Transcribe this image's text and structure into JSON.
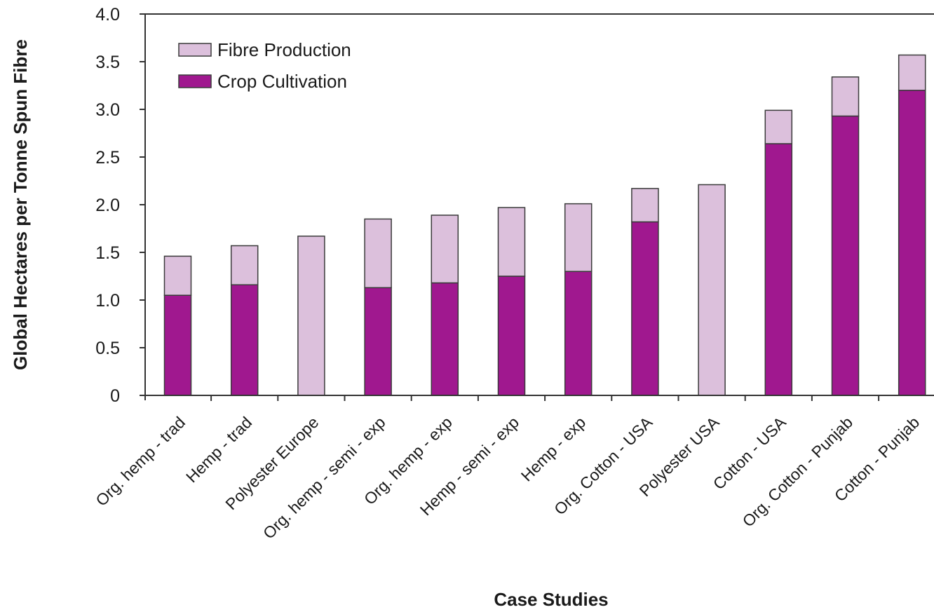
{
  "chart_data": {
    "type": "bar",
    "stacked": true,
    "xlabel": "Case Studies",
    "ylabel": "Global Hectares per Tonne Spun Fibre",
    "ylim": [
      0,
      4.0
    ],
    "yticks": [
      "0",
      "0.5",
      "1.0",
      "1.5",
      "2.0",
      "2.5",
      "3.0",
      "3.5",
      "4.0"
    ],
    "grid": false,
    "legend_position": "top-left",
    "categories": [
      "Org. hemp - trad",
      "Hemp - trad",
      "Polyester Europe",
      "Org. hemp - semi - exp",
      "Org. hemp - exp",
      "Hemp - semi - exp",
      "Hemp - exp",
      "Org. Cotton - USA",
      "Polyester USA",
      "Cotton - USA",
      "Org. Cotton - Punjab",
      "Cotton - Punjab"
    ],
    "series": [
      {
        "name": "Crop Cultivation",
        "color": "#a0188f",
        "values": [
          1.05,
          1.16,
          0,
          1.13,
          1.18,
          1.25,
          1.3,
          1.82,
          0,
          2.64,
          2.93,
          3.2
        ]
      },
      {
        "name": "Fibre Production",
        "color": "#dcc0dc",
        "values": [
          0.41,
          0.41,
          1.67,
          0.72,
          0.71,
          0.72,
          0.71,
          0.35,
          2.21,
          0.35,
          0.41,
          0.37
        ]
      }
    ],
    "legend": [
      "Fibre Production",
      "Crop Cultivation"
    ]
  }
}
